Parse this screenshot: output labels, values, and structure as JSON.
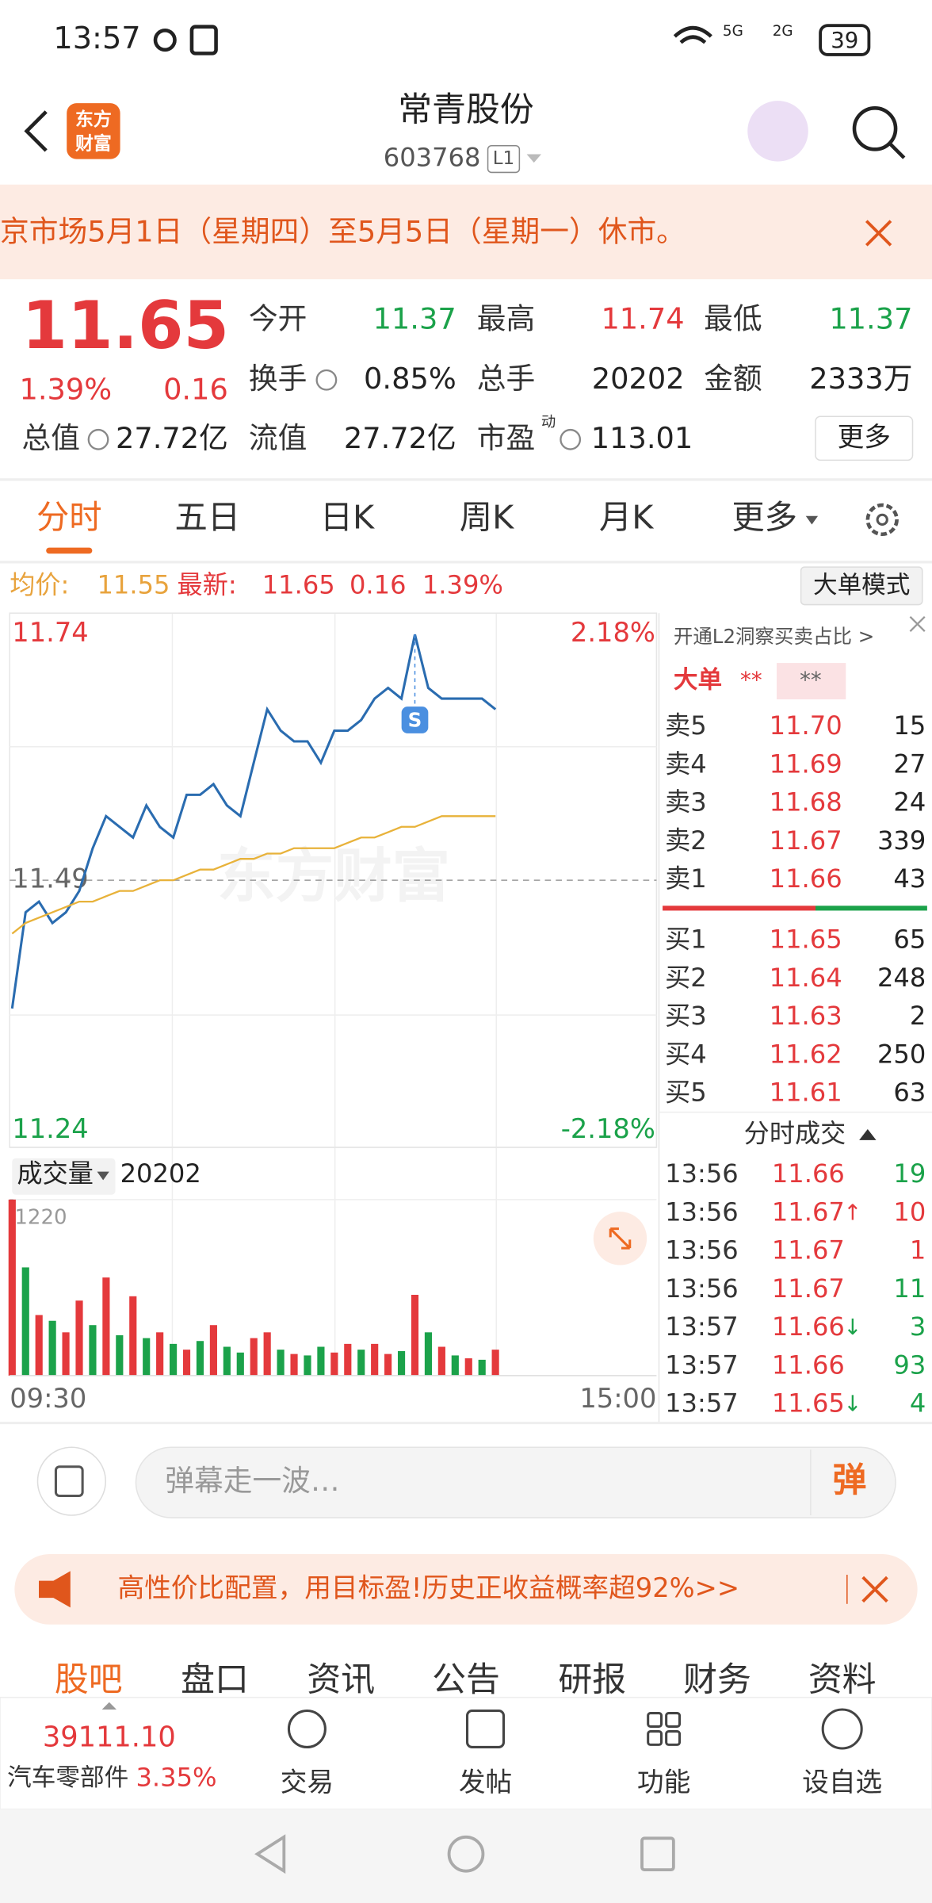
{
  "status": {
    "time": "13:57",
    "net1": "5G",
    "net2": "2G",
    "battery": "39"
  },
  "header": {
    "logo_top": "东方",
    "logo_bottom": "财富",
    "title": "常青股份",
    "code": "603768",
    "level": "L1"
  },
  "notice": "京市场5月1日（星期四）至5月5日（星期一）休市。",
  "quote": {
    "price": "11.65",
    "change_pct": "1.39%",
    "change": "0.16",
    "more": "更多",
    "stats": [
      {
        "label": "今开",
        "value": "11.37",
        "color": "#1ba24a"
      },
      {
        "label": "最高",
        "value": "11.74",
        "color": "#e4393c"
      },
      {
        "label": "最低",
        "value": "11.37",
        "color": "#1ba24a"
      },
      {
        "label": "换手",
        "value": "0.85%",
        "color": "#222222"
      },
      {
        "label": "总手",
        "value": "20202",
        "color": "#222222"
      },
      {
        "label": "金额",
        "value": "2333万",
        "color": "#222222"
      },
      {
        "label": "总值",
        "value": "27.72亿",
        "color": "#222222"
      },
      {
        "label": "流值",
        "value": "27.72亿",
        "color": "#222222"
      },
      {
        "label": "市盈",
        "value": "113.01",
        "color": "#222222",
        "superscript": "动"
      }
    ]
  },
  "tabs": [
    "分时",
    "五日",
    "日K",
    "周K",
    "月K",
    "更多"
  ],
  "info": {
    "avg_label": "均价:",
    "avg": "11.55",
    "latest_label": "最新:",
    "latest": "11.65",
    "change": "0.16",
    "pct": "1.39%",
    "mode": "大单模式"
  },
  "chart_data": [
    {
      "type": "line",
      "watermark": "东方财富",
      "annotation": "S",
      "ylim": [
        11.24,
        11.74
      ],
      "yticks": [
        11.74,
        11.49,
        11.24
      ],
      "y2lim": [
        -2.18,
        2.18
      ],
      "y2ticks": [
        {
          "value": 2.18,
          "label": "2.18%"
        },
        {
          "value": -2.18,
          "label": "-2.18%"
        }
      ],
      "series": [
        {
          "color": "#2a6cb0",
          "values": [
            11.37,
            11.46,
            11.47,
            11.45,
            11.46,
            11.48,
            11.52,
            11.55,
            11.54,
            11.53,
            11.56,
            11.54,
            11.53,
            11.57,
            11.57,
            11.58,
            11.56,
            11.55,
            11.6,
            11.65,
            11.63,
            11.62,
            11.62,
            11.6,
            11.63,
            11.63,
            11.64,
            11.66,
            11.67,
            11.66,
            11.72,
            11.67,
            11.66,
            11.66,
            11.66,
            11.66,
            11.65,
            null,
            null,
            null,
            null,
            null,
            null,
            null,
            null,
            null,
            null,
            null,
            null
          ]
        },
        {
          "color": "#e8b23a",
          "values": [
            11.44,
            11.45,
            11.455,
            11.46,
            11.465,
            11.47,
            11.47,
            11.475,
            11.48,
            11.48,
            11.485,
            11.49,
            11.49,
            11.495,
            11.5,
            11.5,
            11.505,
            11.51,
            11.51,
            11.515,
            11.515,
            11.52,
            11.52,
            11.52,
            11.52,
            11.525,
            11.53,
            11.53,
            11.535,
            11.54,
            11.54,
            11.545,
            11.55,
            11.55,
            11.55,
            11.55,
            11.55,
            null,
            null,
            null,
            null,
            null,
            null,
            null,
            null,
            null,
            null,
            null,
            null
          ]
        }
      ]
    },
    {
      "type": "bar",
      "title": "成交量",
      "total": "20202",
      "ylim": [
        0,
        1220
      ],
      "yticks": [
        1220
      ],
      "categories": [
        "09:30",
        null,
        null,
        null,
        null,
        null,
        null,
        null,
        null,
        null,
        null,
        null,
        null,
        null,
        null,
        null,
        null,
        null,
        null,
        null,
        null,
        null,
        null,
        null,
        null,
        null,
        null,
        null,
        null,
        null,
        null,
        null,
        null,
        null,
        null,
        null,
        null,
        null,
        null,
        null,
        null,
        null,
        null,
        null,
        null,
        null,
        null,
        null,
        "15:00"
      ],
      "values": [
        1220,
        750,
        420,
        380,
        300,
        520,
        350,
        680,
        280,
        550,
        260,
        300,
        220,
        180,
        240,
        350,
        200,
        160,
        260,
        300,
        180,
        150,
        140,
        200,
        160,
        220,
        180,
        220,
        150,
        170,
        560,
        300,
        200,
        140,
        120,
        110,
        180,
        null,
        null,
        null,
        null,
        null,
        null,
        null,
        null,
        null,
        null,
        null,
        null
      ],
      "colors": [
        "#e4393c",
        "#1ba24a",
        "#e4393c",
        "#1ba24a",
        "#e4393c",
        "#e4393c",
        "#1ba24a",
        "#e4393c",
        "#1ba24a",
        "#e4393c",
        "#1ba24a",
        "#e4393c",
        "#1ba24a",
        "#e4393c",
        "#1ba24a",
        "#e4393c",
        "#1ba24a",
        "#1ba24a",
        "#e4393c",
        "#e4393c",
        "#1ba24a",
        "#e4393c",
        "#1ba24a",
        "#1ba24a",
        "#e4393c",
        "#e4393c",
        "#1ba24a",
        "#e4393c",
        "#e4393c",
        "#1ba24a",
        "#e4393c",
        "#1ba24a",
        "#e4393c",
        "#1ba24a",
        "#e4393c",
        "#1ba24a",
        "#e4393c",
        null,
        null,
        null,
        null,
        null,
        null,
        null,
        null,
        null,
        null,
        null,
        null
      ]
    }
  ],
  "book": {
    "promo": "开通L2洞察买卖占比 >",
    "big_label": "大单",
    "big_buy": "**",
    "big_sell": "**",
    "asks": [
      [
        "卖5",
        "11.70",
        "15"
      ],
      [
        "卖4",
        "11.69",
        "27"
      ],
      [
        "卖3",
        "11.68",
        "24"
      ],
      [
        "卖2",
        "11.67",
        "339"
      ],
      [
        "卖1",
        "11.66",
        "43"
      ]
    ],
    "bids": [
      [
        "买1",
        "11.65",
        "65"
      ],
      [
        "买2",
        "11.64",
        "248"
      ],
      [
        "买3",
        "11.63",
        "2"
      ],
      [
        "买4",
        "11.62",
        "250"
      ],
      [
        "买5",
        "11.61",
        "63"
      ]
    ],
    "trades_title": "分时成交",
    "trades": [
      {
        "time": "13:56",
        "price": "11.66",
        "vol": "19",
        "vol_color": "#1ba24a"
      },
      {
        "time": "13:56",
        "price": "11.67",
        "arrow": "↑",
        "arrow_color": "#e4393c",
        "vol": "10",
        "vol_color": "#e4393c"
      },
      {
        "time": "13:56",
        "price": "11.67",
        "vol": "1",
        "vol_color": "#e4393c"
      },
      {
        "time": "13:56",
        "price": "11.67",
        "vol": "11",
        "vol_color": "#1ba24a"
      },
      {
        "time": "13:57",
        "price": "11.66",
        "arrow": "↓",
        "arrow_color": "#1ba24a",
        "vol": "3",
        "vol_color": "#1ba24a"
      },
      {
        "time": "13:57",
        "price": "11.66",
        "vol": "93",
        "vol_color": "#1ba24a"
      },
      {
        "time": "13:57",
        "price": "11.65",
        "arrow": "↓",
        "arrow_color": "#1ba24a",
        "vol": "4",
        "vol_color": "#1ba24a"
      }
    ]
  },
  "comment": {
    "placeholder": "弹幕走一波…",
    "button": "弹"
  },
  "ad": "高性价比配置，用目标盈!历史正收益概率超92%>>",
  "sub_tabs": [
    "股吧",
    "盘口",
    "资讯",
    "公告",
    "研报",
    "财务",
    "资料"
  ],
  "nav": {
    "index": "39111.10",
    "sector": "汽车零部件",
    "sector_pct": "3.35%",
    "items": [
      "交易",
      "发帖",
      "功能",
      "设自选"
    ]
  }
}
